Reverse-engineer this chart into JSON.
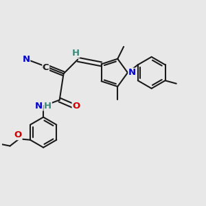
{
  "bg_color": "#e8e8e8",
  "bond_color": "#1a1a1a",
  "bond_width": 1.5,
  "atom_colors": {
    "C": "#1a1a1a",
    "N": "#0000cd",
    "O": "#cc0000",
    "H_teal": "#3a8a7a"
  },
  "font_size_atom": 9.5,
  "font_size_small": 8.5
}
